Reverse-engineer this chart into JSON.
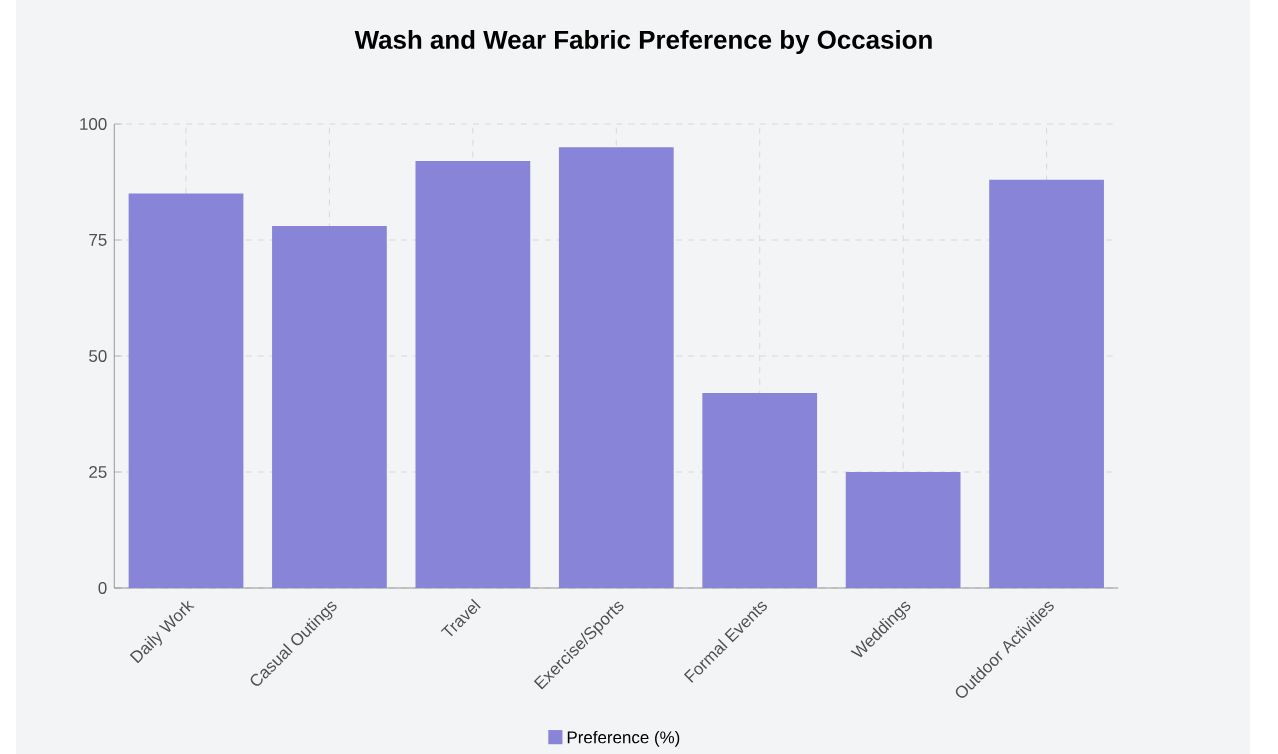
{
  "chart_data": {
    "type": "bar",
    "title": "Wash and Wear Fabric Preference by Occasion",
    "categories": [
      "Daily Work",
      "Casual Outings",
      "Travel",
      "Exercise/Sports",
      "Formal Events",
      "Weddings",
      "Outdoor Activities"
    ],
    "series": [
      {
        "name": "Preference (%)",
        "color": "#8884d8",
        "values": [
          85,
          78,
          92,
          95,
          42,
          25,
          88
        ]
      }
    ],
    "ylim": [
      0,
      100
    ],
    "yticks": [
      0,
      25,
      50,
      75,
      100
    ],
    "grid": true,
    "legend": "bottom"
  }
}
